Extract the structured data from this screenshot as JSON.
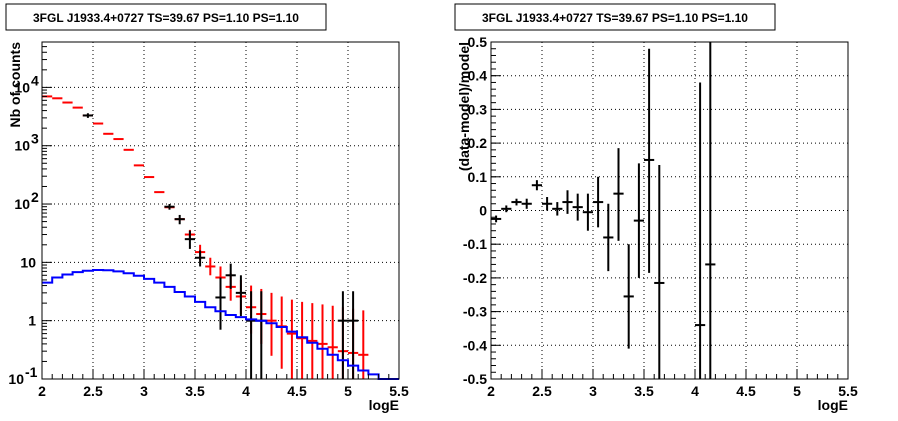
{
  "chart_data": [
    {
      "type": "scatter",
      "title": "3FGL J1933.4+0727 TS=39.67 PS=1.10 PS=1.10",
      "xlabel": "logE",
      "ylabel": "Nb of counts",
      "xlim": [
        2,
        5.5
      ],
      "ylim": [
        0.1,
        60000
      ],
      "yscale": "log",
      "grid": true,
      "x_ticks": [
        "2",
        "2.5",
        "3",
        "3.5",
        "4",
        "4.5",
        "5",
        "5.5"
      ],
      "y_ticks": [
        {
          "value": 0.1,
          "label": "10",
          "exp": "-1"
        },
        {
          "value": 1,
          "label": "1",
          "exp": ""
        },
        {
          "value": 10,
          "label": "10",
          "exp": ""
        },
        {
          "value": 100,
          "label": "10",
          "exp": "2"
        },
        {
          "value": 1000,
          "label": "10",
          "exp": "3"
        },
        {
          "value": 10000,
          "label": "10",
          "exp": "4"
        }
      ],
      "series": [
        {
          "color": "#ff0000",
          "style": "errorbar",
          "x": [
            2.05,
            2.15,
            2.25,
            2.35,
            2.45,
            2.55,
            2.65,
            2.75,
            2.85,
            2.95,
            3.05,
            3.15,
            3.25,
            3.35,
            3.45,
            3.55,
            3.65,
            3.75,
            3.85,
            3.95,
            4.05,
            4.15,
            4.25,
            4.35,
            4.45,
            4.55,
            4.65,
            4.75,
            4.85,
            4.95,
            5.05,
            5.15
          ],
          "y": [
            7000,
            6500,
            5500,
            4500,
            3300,
            2400,
            1600,
            1300,
            850,
            460,
            290,
            160,
            88,
            55,
            30,
            15,
            8.5,
            5.5,
            3.8,
            2.6,
            1.7,
            1.3,
            1.0,
            0.8,
            0.6,
            0.5,
            0.45,
            0.4,
            0.35,
            0.3,
            0.28,
            0.26
          ],
          "ylow": [
            null,
            null,
            null,
            null,
            null,
            null,
            null,
            null,
            null,
            null,
            null,
            null,
            null,
            null,
            25,
            11,
            6.0,
            3.5,
            2.2,
            1.3,
            0.6,
            0.4,
            0.25,
            0.15,
            0.1,
            0.1,
            0.1,
            0.1,
            0.1,
            0.1,
            0.1,
            0.1
          ],
          "yhigh": [
            null,
            null,
            null,
            null,
            null,
            null,
            null,
            null,
            null,
            null,
            null,
            null,
            null,
            null,
            36,
            20,
            12,
            8.5,
            6.5,
            5.0,
            4.0,
            3.5,
            3.0,
            2.6,
            2.3,
            2.1,
            2.0,
            1.9,
            1.8,
            1.7,
            1.6,
            1.5
          ]
        },
        {
          "color": "#000000",
          "style": "errorbar",
          "x": [
            2.45,
            3.25,
            3.35,
            3.45,
            3.55,
            3.75,
            3.85,
            3.95,
            4.05,
            4.15,
            4.95,
            5.05
          ],
          "y": [
            3300,
            90,
            55,
            25,
            12,
            2.5,
            6.0,
            3.0,
            1.0,
            1.0,
            1.0,
            1.0
          ],
          "ylow": [
            3000,
            80,
            45,
            17,
            8.5,
            0.7,
            3.5,
            1.2,
            0.1,
            0.1,
            0.1,
            0.1
          ],
          "yhigh": [
            3600,
            100,
            65,
            35,
            16,
            5.5,
            9.5,
            6.0,
            3.2,
            3.2,
            3.2,
            3.2
          ]
        },
        {
          "color": "#0000ff",
          "style": "step",
          "x": [
            2.05,
            2.15,
            2.25,
            2.35,
            2.45,
            2.55,
            2.65,
            2.75,
            2.85,
            2.95,
            3.05,
            3.15,
            3.25,
            3.35,
            3.45,
            3.55,
            3.65,
            3.75,
            3.85,
            3.95,
            4.05,
            4.15,
            4.25,
            4.35,
            4.45,
            4.55,
            4.65,
            4.75,
            4.85,
            4.95,
            5.05,
            5.15,
            5.25,
            5.35,
            5.45
          ],
          "y": [
            4.5,
            5.5,
            6.2,
            6.8,
            7.2,
            7.4,
            7.3,
            7.0,
            6.5,
            5.9,
            5.2,
            4.5,
            3.8,
            3.1,
            2.6,
            2.1,
            1.7,
            1.45,
            1.25,
            1.15,
            1.05,
            1.0,
            0.9,
            0.78,
            0.65,
            0.52,
            0.42,
            0.33,
            0.26,
            0.21,
            0.17,
            0.14,
            0.12,
            0.1,
            0.1
          ]
        }
      ]
    },
    {
      "type": "scatter",
      "title": "3FGL J1933.4+0727 TS=39.67 PS=1.10 PS=1.10",
      "xlabel": "logE",
      "ylabel": "(data-model)/model",
      "xlim": [
        2,
        5.5
      ],
      "ylim": [
        -0.5,
        0.5
      ],
      "grid": true,
      "x_ticks": [
        "2",
        "2.5",
        "3",
        "3.5",
        "4",
        "4.5",
        "5",
        "5.5"
      ],
      "y_ticks": [
        "-0.5",
        "-0.4",
        "-0.3",
        "-0.2",
        "-0.1",
        "0",
        "0.1",
        "0.2",
        "0.3",
        "0.4",
        "0.5"
      ],
      "series": [
        {
          "color": "#000000",
          "style": "errorbar",
          "x": [
            2.05,
            2.15,
            2.25,
            2.35,
            2.45,
            2.55,
            2.65,
            2.75,
            2.85,
            2.95,
            3.05,
            3.15,
            3.25,
            3.35,
            3.45,
            3.55,
            3.65,
            4.05,
            4.15
          ],
          "y": [
            -0.025,
            0.005,
            0.025,
            0.02,
            0.075,
            0.02,
            0.005,
            0.025,
            0.01,
            -0.005,
            0.025,
            -0.08,
            0.05,
            -0.255,
            -0.03,
            0.15,
            -0.215,
            -0.34,
            -0.16
          ],
          "ylow": [
            -0.035,
            -0.005,
            0.015,
            0.005,
            0.06,
            0.0,
            -0.015,
            -0.01,
            -0.03,
            -0.06,
            -0.05,
            -0.18,
            -0.09,
            -0.41,
            -0.2,
            -0.185,
            -0.5,
            -0.5,
            -0.5
          ],
          "yhigh": [
            -0.015,
            0.015,
            0.035,
            0.035,
            0.09,
            0.04,
            0.025,
            0.06,
            0.05,
            0.05,
            0.1,
            0.02,
            0.185,
            -0.1,
            0.14,
            0.48,
            0.135,
            0.38,
            0.5
          ]
        }
      ]
    }
  ]
}
